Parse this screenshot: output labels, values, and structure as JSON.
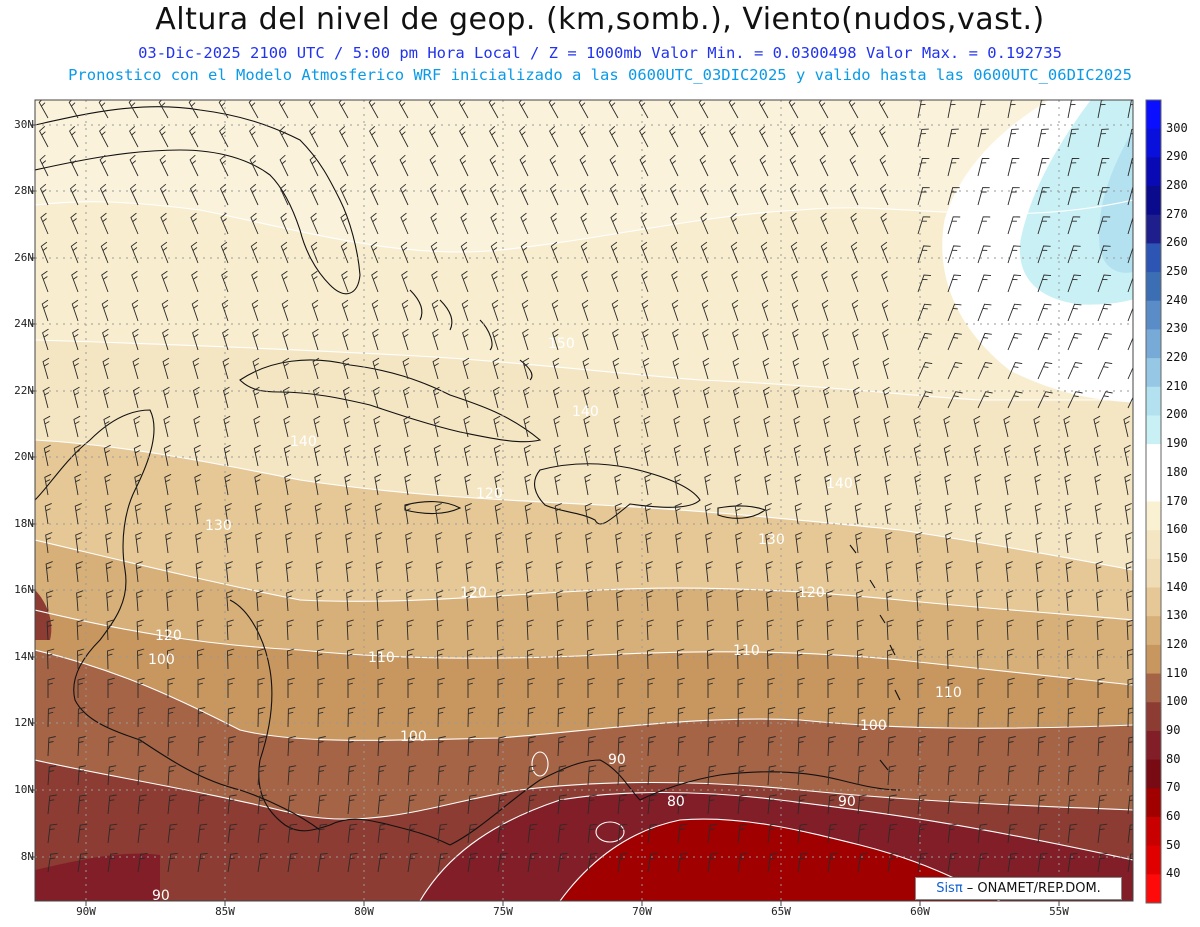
{
  "title": "Altura del nivel de geop. (km,somb.), Viento(nudos,vast.)",
  "subtitle1": "03-Dic-2025  2100 UTC / 5:00 pm Hora Local / Z = 1000mb  Valor Min. = 0.0300498  Valor Max. = 0.192735",
  "subtitle2": "Pronostico con el Modelo Atmosferico WRF inicializado a las 0600UTC_03DIC2025 y valido hasta las  0600UTC_06DIC2025",
  "credit": {
    "brand": "Sisπ",
    "text": " – ONAMET/REP.DOM."
  },
  "lat_labels": [
    "30N",
    "28N",
    "26N",
    "24N",
    "22N",
    "20N",
    "18N",
    "16N",
    "14N",
    "12N",
    "10N",
    "8N"
  ],
  "lon_labels": [
    "90W",
    "85W",
    "80W",
    "75W",
    "70W",
    "65W",
    "60W",
    "55W"
  ],
  "colorbar": {
    "labels": [
      "300",
      "290",
      "280",
      "270",
      "260",
      "250",
      "240",
      "230",
      "220",
      "210",
      "200",
      "190",
      "180",
      "170",
      "160",
      "150",
      "140",
      "130",
      "120",
      "110",
      "100",
      "90",
      "80",
      "70",
      "60",
      "50",
      "40"
    ],
    "colors": [
      "#0a10ff",
      "#0a10dc",
      "#0a0ab4",
      "#0a0a8c",
      "#1e1e8c",
      "#2d55b4",
      "#3c6eb4",
      "#5a8cc8",
      "#78aad7",
      "#96c8e6",
      "#b4e1f0",
      "#c8f0f5",
      "#ffffff",
      "#ffffff",
      "#faf0d2",
      "#f5e6c3",
      "#f0dcb4",
      "#e6c896",
      "#d7af78",
      "#c8965f",
      "#a56446",
      "#8c3c32",
      "#821e28",
      "#780a14",
      "#a00000",
      "#c80000",
      "#e10000",
      "#ff0a0a"
    ]
  },
  "contour_labels": [
    "130",
    "140",
    "150",
    "120",
    "110",
    "100",
    "90",
    "80"
  ],
  "chart_data": {
    "type": "heatmap",
    "title": "Altura del nivel de geop. (km,somb.), Viento(nudos,vast.)",
    "level": "1000mb",
    "valid": "03-Dic-2025 2100 UTC",
    "value_min": 0.0300498,
    "value_max": 0.192735,
    "lon_range": [
      -92,
      -52
    ],
    "lat_range": [
      7,
      31
    ],
    "contour_levels": [
      80,
      90,
      100,
      110,
      120,
      130,
      140,
      150,
      160,
      170,
      180
    ]
  }
}
